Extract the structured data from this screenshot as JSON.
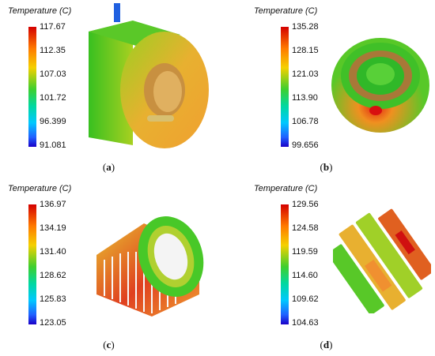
{
  "legend_title": "Temperature (C)",
  "panels": {
    "a": {
      "label": "a",
      "ticks": [
        "117.67",
        "112.35",
        "107.03",
        "101.72",
        "96.399",
        "91.081"
      ]
    },
    "b": {
      "label": "b",
      "ticks": [
        "135.28",
        "128.15",
        "121.03",
        "113.90",
        "106.78",
        "99.656"
      ]
    },
    "c": {
      "label": "c",
      "ticks": [
        "136.97",
        "134.19",
        "131.40",
        "128.62",
        "125.83",
        "123.05"
      ]
    },
    "d": {
      "label": "d",
      "ticks": [
        "129.56",
        "124.58",
        "119.59",
        "114.60",
        "109.62",
        "104.63"
      ]
    }
  },
  "colors": {
    "hot": "#e01010",
    "warm": "#f0a020",
    "mid": "#7cd020",
    "cool": "#20c840",
    "cold": "#2040e0"
  }
}
